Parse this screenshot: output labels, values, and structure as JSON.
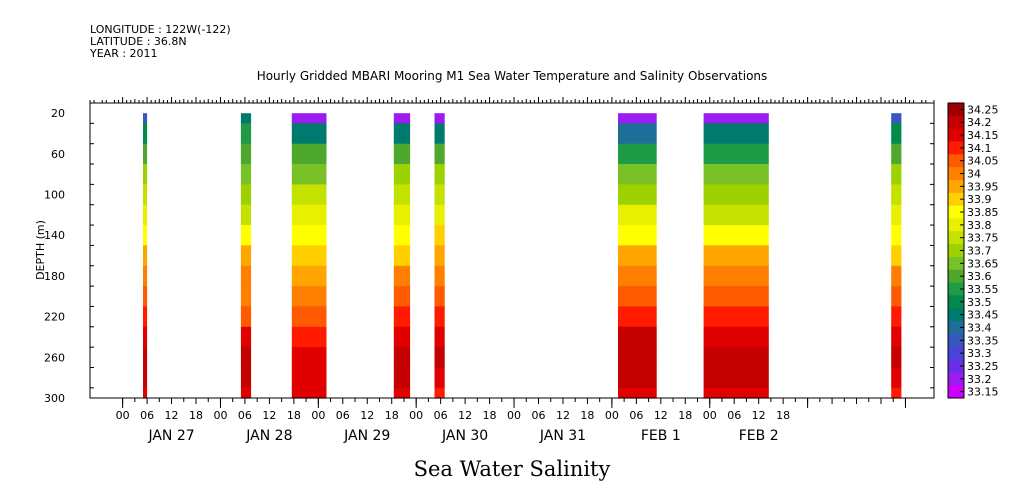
{
  "header": {
    "longitude": "LONGITUDE : 122W(-122)",
    "latitude": "LATITUDE : 36.8N",
    "year": "YEAR : 2011"
  },
  "chart_data": {
    "type": "heatmap",
    "title": "Hourly Gridded MBARI Mooring M1 Sea Water Temperature and Salinity Observations",
    "subtitle": "Sea Water Salinity",
    "xlabel": "",
    "ylabel": "DEPTH (m)",
    "x_unit": "hours since 2011-01-27 00:00",
    "xlim": [
      -8,
      199
    ],
    "ylim": [
      300,
      10
    ],
    "y_ticks": [
      20,
      60,
      100,
      140,
      180,
      220,
      260,
      300
    ],
    "x_tick_hours": [
      "00",
      "06",
      "12",
      "18",
      "00",
      "06",
      "12",
      "18",
      "00",
      "06",
      "12",
      "18",
      "00",
      "06",
      "12",
      "18",
      "00",
      "06",
      "12",
      "18",
      "00",
      "06",
      "12",
      "18",
      "00",
      "06",
      "12",
      "18"
    ],
    "x_day_labels": [
      "JAN 27",
      "JAN 28",
      "JAN 29",
      "JAN 30",
      "JAN 31",
      "FEB 1",
      "FEB 2"
    ],
    "colorbar": {
      "levels": [
        34.25,
        34.2,
        34.15,
        34.1,
        34.05,
        34,
        33.95,
        33.9,
        33.85,
        33.8,
        33.75,
        33.7,
        33.65,
        33.6,
        33.55,
        33.5,
        33.45,
        33.4,
        33.35,
        33.3,
        33.25,
        33.2,
        33.15
      ],
      "colors": [
        "#a00000",
        "#c40000",
        "#e00000",
        "#ff1a00",
        "#ff5a00",
        "#ff7f00",
        "#ffa500",
        "#ffcf00",
        "#ffff00",
        "#e8f000",
        "#c4e100",
        "#9dd200",
        "#78c228",
        "#4ea82e",
        "#1f9a46",
        "#008a4c",
        "#00796e",
        "#1f6e98",
        "#3557c0",
        "#4a44d6",
        "#6a2ee6",
        "#9a1cf0",
        "#cc00ff"
      ],
      "labels": [
        "34.25",
        "34.2",
        "34.15",
        "34.1",
        "34.05",
        "34",
        "33.95",
        "33.9",
        "33.85",
        "33.8",
        "33.75",
        "33.7",
        "33.65",
        "33.6",
        "33.55",
        "33.5",
        "33.45",
        "33.4",
        "33.35",
        "33.3",
        "33.25",
        "33.2",
        "33.15"
      ]
    },
    "depths": [
      20,
      40,
      60,
      80,
      100,
      120,
      140,
      160,
      180,
      200,
      220,
      240,
      260,
      280,
      300
    ],
    "segments": [
      {
        "start": 5,
        "end": 6,
        "salinity": [
          33.35,
          33.5,
          33.6,
          33.7,
          33.75,
          33.8,
          33.85,
          33.95,
          34.0,
          34.05,
          34.1,
          34.15,
          34.2,
          34.2,
          34.15
        ]
      },
      {
        "start": 29,
        "end": 31.5,
        "salinity": [
          33.45,
          33.55,
          33.6,
          33.65,
          33.7,
          33.75,
          33.85,
          33.95,
          34.0,
          34.0,
          34.05,
          34.15,
          34.2,
          34.2,
          34.15
        ]
      },
      {
        "start": 41.5,
        "end": 50,
        "salinity": [
          33.2,
          33.45,
          33.6,
          33.65,
          33.75,
          33.8,
          33.85,
          33.9,
          33.95,
          34.0,
          34.05,
          34.1,
          34.15,
          34.15,
          34.15
        ]
      },
      {
        "start": 66.5,
        "end": 70.5,
        "salinity": [
          33.2,
          33.45,
          33.6,
          33.7,
          33.75,
          33.8,
          33.85,
          33.9,
          34.0,
          34.05,
          34.1,
          34.15,
          34.2,
          34.2,
          34.15
        ]
      },
      {
        "start": 76.5,
        "end": 79,
        "salinity": [
          33.2,
          33.45,
          33.6,
          33.7,
          33.75,
          33.8,
          33.9,
          33.95,
          34.0,
          34.05,
          34.1,
          34.15,
          34.2,
          34.15,
          34.1
        ]
      },
      {
        "start": 121.5,
        "end": 131,
        "salinity": [
          33.2,
          33.4,
          33.55,
          33.65,
          33.7,
          33.8,
          33.85,
          33.95,
          34.0,
          34.05,
          34.1,
          34.2,
          34.2,
          34.2,
          34.15
        ]
      },
      {
        "start": 142.5,
        "end": 158.5,
        "salinity": [
          33.2,
          33.45,
          33.55,
          33.65,
          33.7,
          33.75,
          33.85,
          33.95,
          34.0,
          34.05,
          34.1,
          34.15,
          34.2,
          34.2,
          34.15
        ]
      },
      {
        "start": 188.5,
        "end": 191,
        "salinity": [
          33.35,
          33.5,
          33.6,
          33.7,
          33.75,
          33.8,
          33.85,
          33.9,
          34.0,
          34.05,
          34.1,
          34.15,
          34.2,
          34.15,
          34.1
        ]
      }
    ]
  }
}
